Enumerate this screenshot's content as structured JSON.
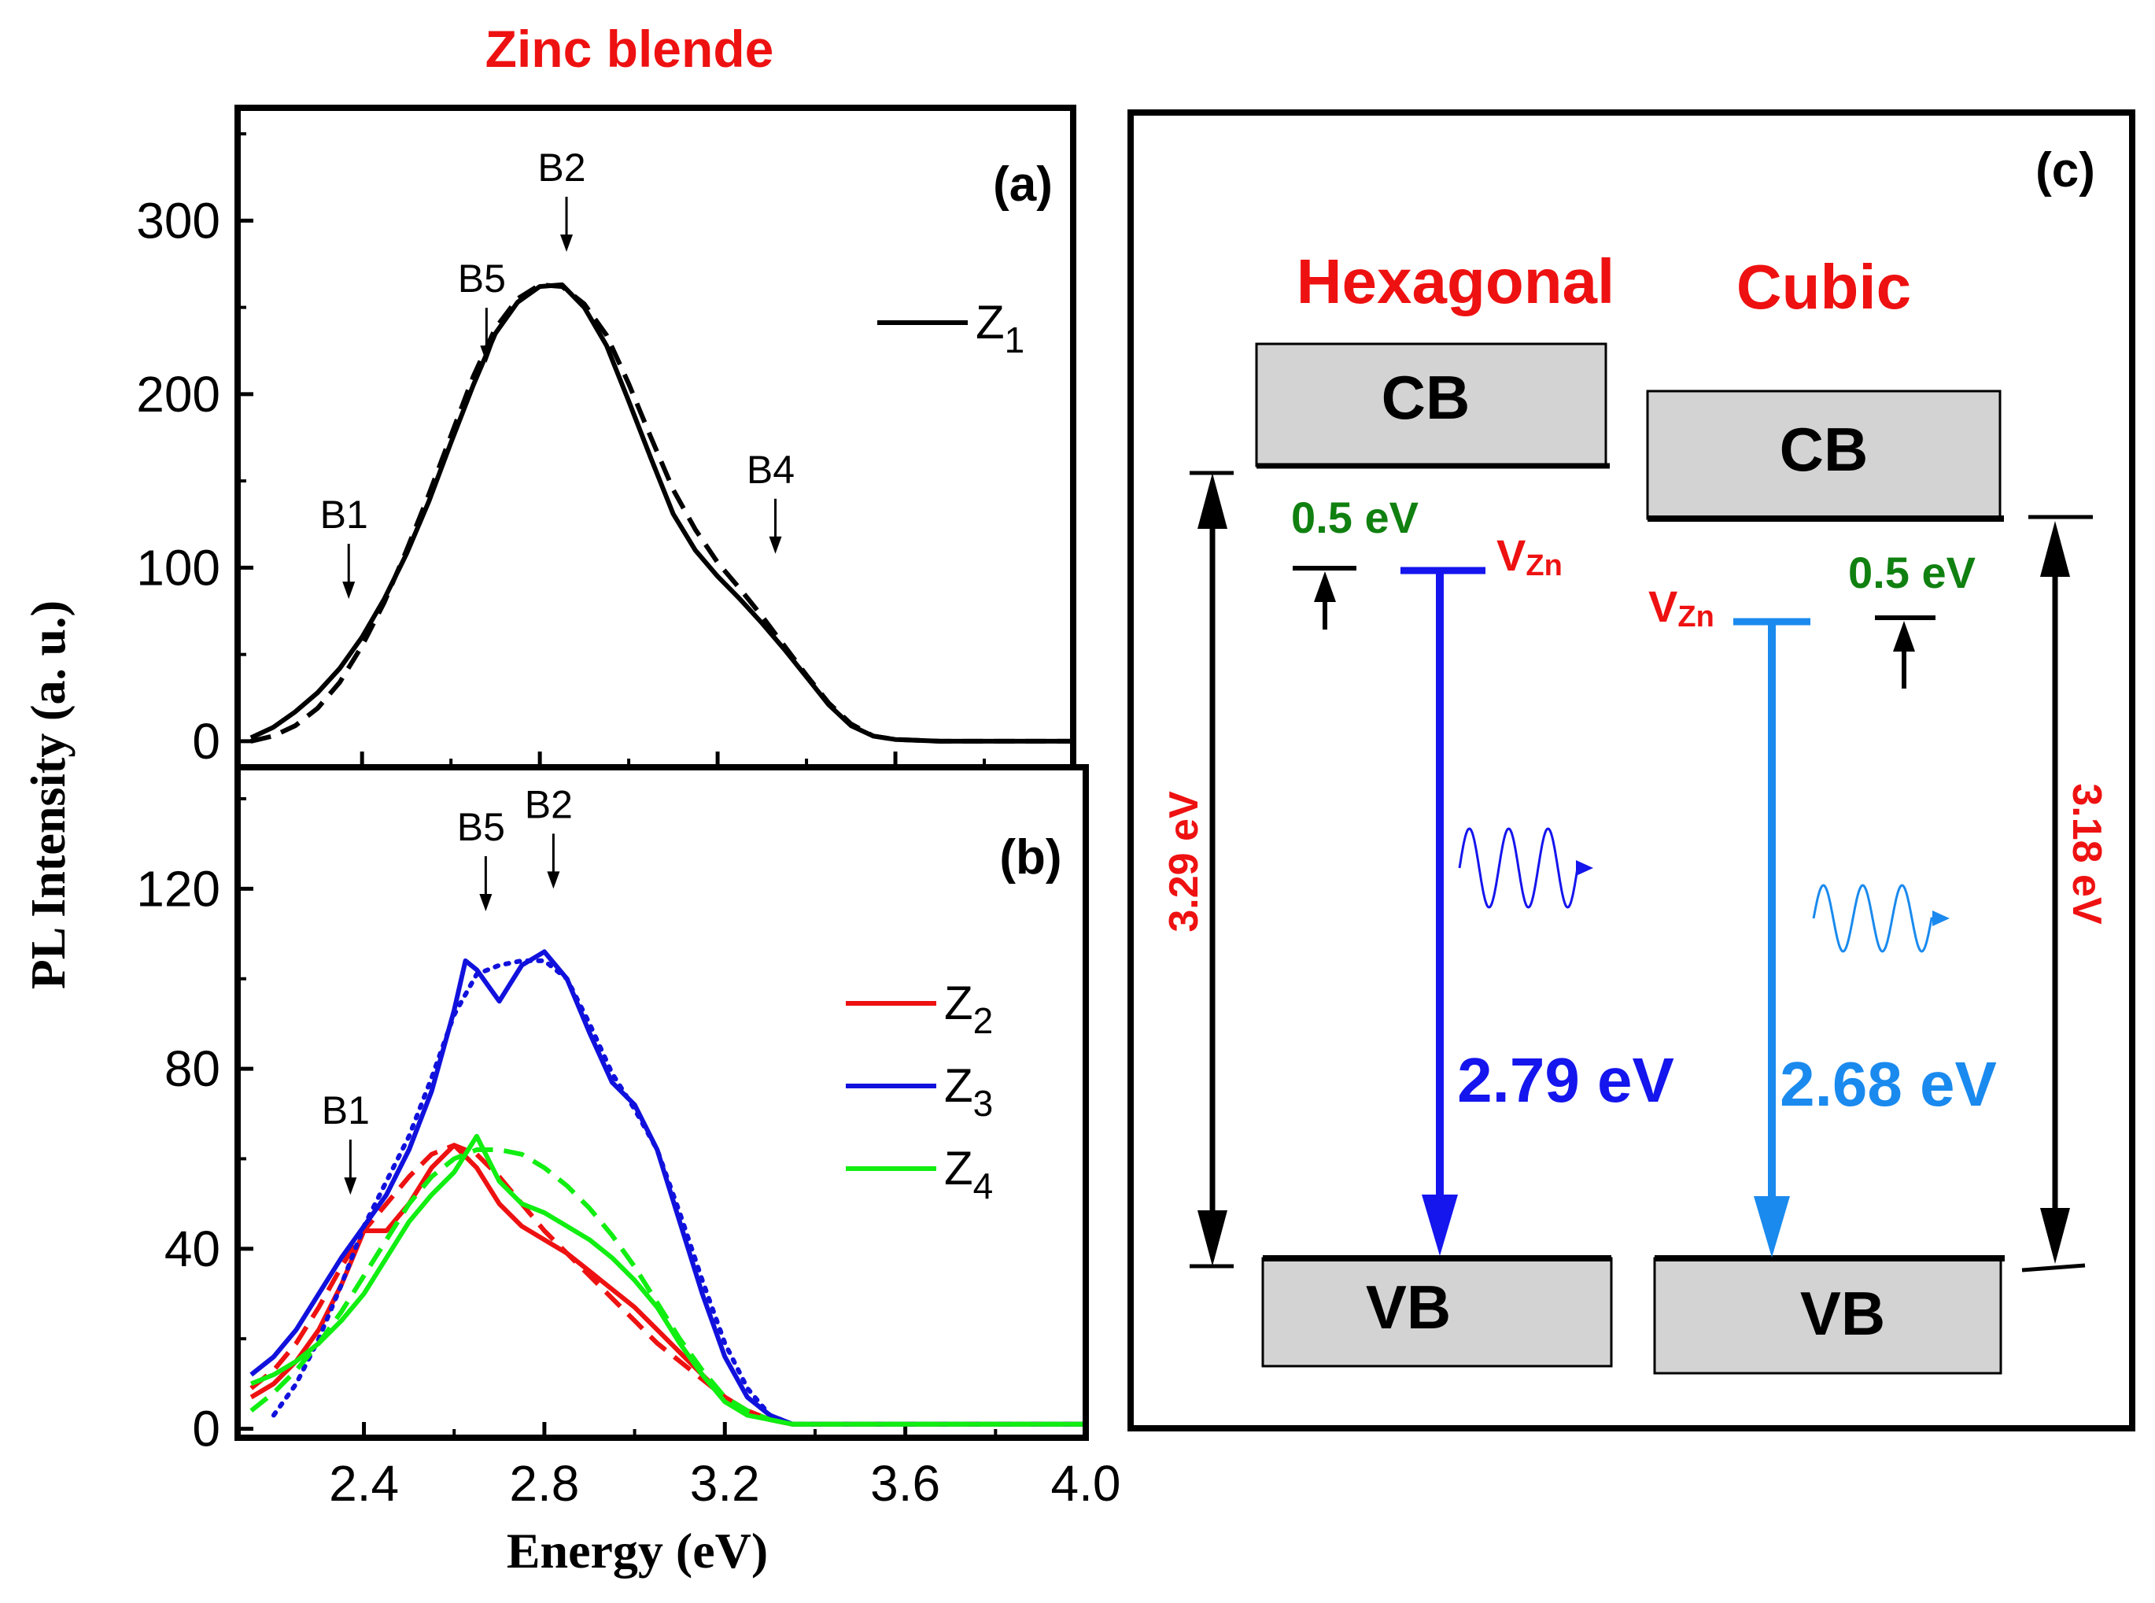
{
  "figure_title": "Zinc blende",
  "y_axis_label": "PL Intensity (a. u.)",
  "x_axis_label": "Energy (eV)",
  "colors": {
    "title_red": "#ee1111",
    "z1": "#000000",
    "z2": "#ee1111",
    "z3": "#1111dd",
    "z4": "#11ee11",
    "hex_emission": "#1515ee",
    "cubic_emission": "#1a8aee",
    "green_text": "#108010",
    "box_fill": "#d3d3d3"
  },
  "chart_data": [
    {
      "type": "line",
      "panel": "(a)",
      "xlim": [
        2.12,
        4.0
      ],
      "ylim": [
        -15,
        365
      ],
      "y_ticks": [
        0,
        100,
        200,
        300
      ],
      "y_tick_labels": [
        "0",
        "100",
        "200",
        "300"
      ],
      "x_ticks": [
        2.4,
        2.8,
        3.2,
        3.6,
        4.0
      ],
      "legend": "top-right",
      "annotations": [
        {
          "label": "B1",
          "x": 2.37,
          "y": 82
        },
        {
          "label": "B5",
          "x": 2.68,
          "y": 218
        },
        {
          "label": "B2",
          "x": 2.86,
          "y": 282
        },
        {
          "label": "B4",
          "x": 3.33,
          "y": 108
        }
      ],
      "series": [
        {
          "name": "Z1",
          "sub": "1",
          "style": "solid",
          "x": [
            2.15,
            2.2,
            2.25,
            2.3,
            2.35,
            2.4,
            2.45,
            2.5,
            2.55,
            2.6,
            2.65,
            2.7,
            2.75,
            2.8,
            2.85,
            2.9,
            2.95,
            3.0,
            3.05,
            3.1,
            3.15,
            3.2,
            3.25,
            3.3,
            3.35,
            3.4,
            3.45,
            3.5,
            3.55,
            3.6,
            3.7,
            3.8,
            3.9,
            4.0
          ],
          "values": [
            2,
            8,
            17,
            28,
            42,
            60,
            82,
            108,
            138,
            172,
            205,
            235,
            253,
            262,
            263,
            250,
            228,
            196,
            163,
            131,
            110,
            95,
            82,
            68,
            53,
            37,
            21,
            9,
            3,
            1,
            0,
            0,
            0,
            0
          ]
        },
        {
          "name": "",
          "style": "dashed",
          "x": [
            2.15,
            2.2,
            2.25,
            2.3,
            2.35,
            2.4,
            2.45,
            2.5,
            2.55,
            2.6,
            2.65,
            2.7,
            2.75,
            2.8,
            2.85,
            2.9,
            2.95,
            3.0,
            3.05,
            3.1,
            3.15,
            3.2,
            3.25,
            3.3,
            3.35,
            3.4,
            3.45,
            3.5,
            3.55,
            3.6,
            3.7,
            3.8,
            3.9,
            4.0
          ],
          "values": [
            0,
            3,
            9,
            19,
            34,
            55,
            80,
            110,
            142,
            176,
            210,
            238,
            255,
            263,
            262,
            252,
            234,
            206,
            175,
            145,
            122,
            103,
            88,
            72,
            55,
            38,
            22,
            10,
            3,
            1,
            0,
            0,
            0,
            0
          ]
        }
      ]
    },
    {
      "type": "line",
      "panel": "(b)",
      "xlim": [
        2.12,
        4.0
      ],
      "ylim": [
        -2,
        147
      ],
      "y_ticks": [
        0,
        40,
        80,
        120
      ],
      "y_tick_labels": [
        "0",
        "40",
        "80",
        "120"
      ],
      "x_ticks": [
        2.4,
        2.8,
        3.2,
        3.6,
        4.0
      ],
      "x_tick_labels": [
        "2.4",
        "2.8",
        "3.2",
        "3.6",
        "4.0"
      ],
      "legend": "top-right",
      "annotations": [
        {
          "label": "B1",
          "x": 2.37,
          "y": 52
        },
        {
          "label": "B5",
          "x": 2.67,
          "y": 115
        },
        {
          "label": "B2",
          "x": 2.82,
          "y": 120
        }
      ],
      "series": [
        {
          "name": "Z2",
          "sub": "2",
          "color_key": "z2",
          "style": "solid",
          "x": [
            2.15,
            2.2,
            2.25,
            2.3,
            2.35,
            2.4,
            2.45,
            2.5,
            2.55,
            2.6,
            2.65,
            2.7,
            2.75,
            2.8,
            2.85,
            2.9,
            2.95,
            3.0,
            3.05,
            3.1,
            3.15,
            3.2,
            3.25,
            3.3,
            3.35,
            3.4,
            3.5,
            3.6,
            3.8,
            4.0
          ],
          "values": [
            7,
            10,
            15,
            22,
            32,
            44,
            44,
            50,
            58,
            63,
            58,
            50,
            45,
            42,
            39,
            35,
            31,
            27,
            22,
            17,
            12,
            7,
            4,
            2,
            1,
            1,
            1,
            1,
            1,
            1
          ]
        },
        {
          "name": "",
          "color_key": "z2",
          "style": "dashed",
          "x": [
            2.15,
            2.2,
            2.25,
            2.3,
            2.35,
            2.4,
            2.45,
            2.5,
            2.55,
            2.6,
            2.65,
            2.7,
            2.75,
            2.8,
            2.85,
            2.9,
            2.95,
            3.0,
            3.05,
            3.1,
            3.15,
            3.2,
            3.25,
            3.3,
            3.35,
            3.4,
            3.5,
            3.6,
            3.8,
            4.0
          ],
          "values": [
            9,
            13,
            19,
            27,
            36,
            44,
            50,
            56,
            61,
            63,
            61,
            56,
            50,
            44,
            39,
            34,
            29,
            24,
            19,
            15,
            11,
            7,
            4,
            2,
            1,
            1,
            1,
            1,
            1,
            1
          ]
        },
        {
          "name": "Z3",
          "sub": "3",
          "color_key": "z3",
          "style": "solid",
          "x": [
            2.15,
            2.2,
            2.25,
            2.3,
            2.35,
            2.4,
            2.45,
            2.5,
            2.55,
            2.6,
            2.625,
            2.65,
            2.7,
            2.75,
            2.8,
            2.85,
            2.9,
            2.95,
            3.0,
            3.05,
            3.1,
            3.15,
            3.2,
            3.25,
            3.3,
            3.35,
            3.4,
            3.5,
            3.6,
            3.8,
            4.0
          ],
          "values": [
            12,
            16,
            22,
            30,
            38,
            45,
            52,
            62,
            75,
            93,
            104,
            102,
            95,
            103,
            106,
            100,
            88,
            77,
            72,
            62,
            46,
            30,
            16,
            7,
            3,
            1,
            1,
            1,
            1,
            1,
            1
          ]
        },
        {
          "name": "",
          "color_key": "z3",
          "style": "dotted",
          "x": [
            2.2,
            2.25,
            2.3,
            2.35,
            2.4,
            2.45,
            2.5,
            2.55,
            2.6,
            2.65,
            2.7,
            2.75,
            2.8,
            2.85,
            2.9,
            2.95,
            3.0,
            3.05,
            3.1,
            3.15,
            3.2,
            3.25,
            3.3,
            3.35,
            3.4,
            3.5,
            3.6,
            3.8,
            4.0
          ],
          "values": [
            3,
            10,
            20,
            32,
            45,
            55,
            65,
            78,
            92,
            101,
            103,
            104,
            104,
            100,
            90,
            79,
            71,
            62,
            48,
            33,
            19,
            9,
            3,
            1,
            1,
            1,
            1,
            1,
            1
          ]
        },
        {
          "name": "Z4",
          "sub": "4",
          "color_key": "z4",
          "style": "solid",
          "x": [
            2.15,
            2.2,
            2.25,
            2.3,
            2.35,
            2.4,
            2.45,
            2.5,
            2.55,
            2.6,
            2.65,
            2.7,
            2.75,
            2.8,
            2.85,
            2.9,
            2.95,
            3.0,
            3.05,
            3.1,
            3.15,
            3.2,
            3.25,
            3.3,
            3.35,
            3.4,
            3.5,
            3.6,
            3.8,
            4.0
          ],
          "values": [
            10,
            12,
            15,
            19,
            24,
            30,
            38,
            46,
            52,
            57,
            65,
            55,
            50,
            48,
            45,
            42,
            38,
            33,
            27,
            19,
            12,
            6,
            3,
            2,
            1,
            1,
            1,
            1,
            1,
            1
          ]
        },
        {
          "name": "",
          "color_key": "z4",
          "style": "dashed",
          "x": [
            2.15,
            2.2,
            2.25,
            2.3,
            2.35,
            2.4,
            2.45,
            2.5,
            2.55,
            2.6,
            2.65,
            2.7,
            2.75,
            2.8,
            2.85,
            2.9,
            2.95,
            3.0,
            3.05,
            3.1,
            3.15,
            3.2,
            3.25,
            3.3,
            3.35,
            3.4,
            3.5,
            3.6,
            3.8,
            4.0
          ],
          "values": [
            4,
            8,
            13,
            19,
            26,
            34,
            42,
            50,
            56,
            60,
            62,
            62,
            61,
            58,
            54,
            49,
            43,
            36,
            28,
            20,
            13,
            7,
            4,
            2,
            1,
            1,
            1,
            1,
            1,
            1
          ]
        }
      ]
    }
  ],
  "diagram": {
    "panel_label": "(c)",
    "hexagonal": {
      "title": "Hexagonal",
      "cb_label": "CB",
      "vb_label": "VB",
      "gap_label": "3.29 eV",
      "level_label_main": "V",
      "level_label_sub": "Zn",
      "depth_label": "0.5 eV",
      "emission_label": "2.79 eV"
    },
    "cubic": {
      "title": "Cubic",
      "cb_label": "CB",
      "vb_label": "VB",
      "gap_label": "3.18 eV",
      "level_label_main": "V",
      "level_label_sub": "Zn",
      "depth_label": "0.5 eV",
      "emission_label": "2.68 eV"
    }
  }
}
